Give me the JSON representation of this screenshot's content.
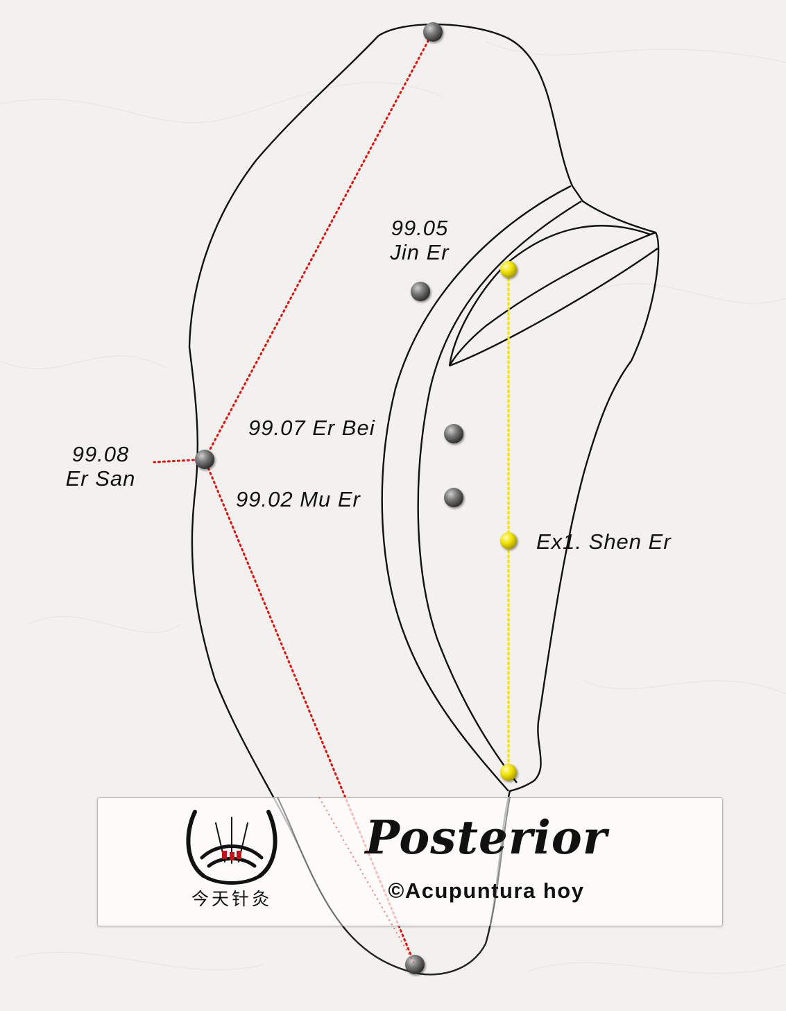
{
  "points": {
    "jin_er": {
      "code": "99.05",
      "name": "Jin Er"
    },
    "er_bei": "99.07 Er Bei",
    "er_san": {
      "code": "99.08",
      "name": "Er San"
    },
    "mu_er": "99.02 Mu Er",
    "shen_er": "Ex1. Shen Er"
  },
  "caption": {
    "title": "Posterior",
    "credit": "©Acupuntura hoy",
    "logo_text": "今天针灸"
  },
  "colors": {
    "red_line": "#e01010",
    "yellow_line": "#f4e200",
    "gray_point": "#6b6b6b",
    "yellow_point": "#f2e400"
  }
}
